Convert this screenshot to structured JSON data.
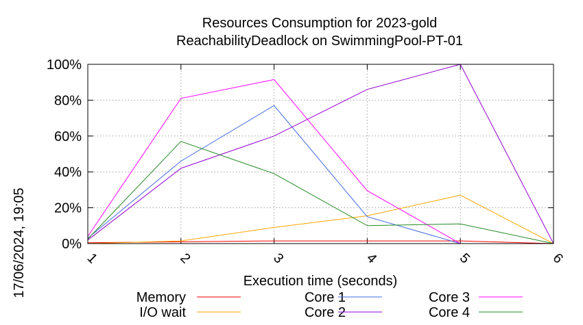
{
  "chart_data": {
    "type": "line",
    "title_lines": [
      "Resources Consumption for 2023-gold",
      "ReachabilityDeadlock on SwimmingPool-PT-01"
    ],
    "xlabel": "Execution time (seconds)",
    "ylabel": "",
    "side_label": "17/06/2024, 19:05",
    "x": [
      1,
      2,
      3,
      4,
      5,
      6
    ],
    "x_ticks": [
      "1",
      "2",
      "3",
      "4",
      "5",
      "6"
    ],
    "y_ticks": [
      "0%",
      "20%",
      "40%",
      "60%",
      "80%",
      "100%"
    ],
    "xlim": [
      1,
      6
    ],
    "ylim": [
      0,
      100
    ],
    "grid": true,
    "legend_position": "bottom",
    "series": [
      {
        "name": "Memory",
        "color": "#ff0000",
        "values": [
          0.5,
          1,
          1.5,
          1.5,
          1.5,
          0
        ]
      },
      {
        "name": "I/O wait",
        "color": "#ffa500",
        "values": [
          0,
          1.5,
          9,
          15.5,
          27,
          0
        ]
      },
      {
        "name": "Core 1",
        "color": "#4169e1",
        "values": [
          3,
          46,
          77,
          15,
          0,
          0
        ]
      },
      {
        "name": "Core 2",
        "color": "#9400d3",
        "values": [
          2,
          42,
          60,
          86,
          100,
          0
        ]
      },
      {
        "name": "Core 3",
        "color": "#ff00ff",
        "values": [
          4,
          81,
          91.5,
          29.5,
          0,
          0
        ]
      },
      {
        "name": "Core 4",
        "color": "#228b22",
        "values": [
          2.5,
          57,
          39,
          10,
          11,
          0
        ]
      }
    ]
  }
}
